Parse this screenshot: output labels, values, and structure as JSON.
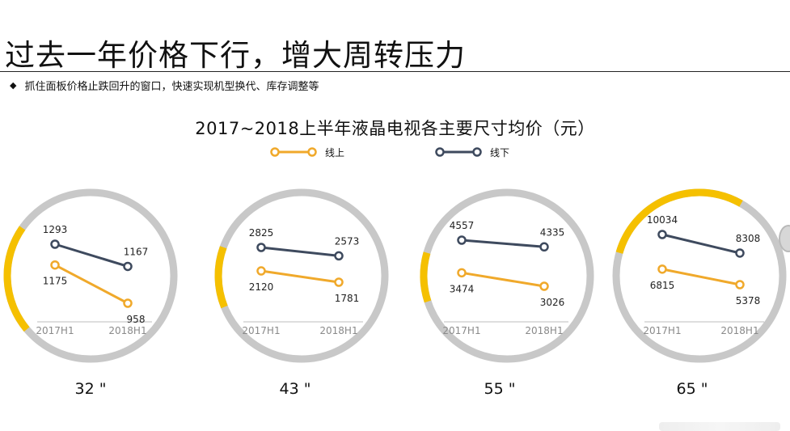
{
  "title": "过去一年价格下行，增大周转压力",
  "bullet": {
    "icon": "diamond-bullet-icon",
    "text": "抓住面板价格止跌回升的窗口，快速实现机型换代、库存调整等"
  },
  "colors": {
    "online": "#f0a92b",
    "offline": "#3e4a5e",
    "ring": "#c8c8c8",
    "ring_accent": "#f5c000",
    "axis": "#bdbdbd",
    "tick_text": "#8a8a8a"
  },
  "chart_data": {
    "type": "line",
    "title": "2017~2018上半年液晶电视各主要尺寸均价（元）",
    "legend": [
      {
        "name": "线上",
        "color": "#f0a92b"
      },
      {
        "name": "线下",
        "color": "#3e4a5e"
      }
    ],
    "legend_position": "top",
    "x_categories": [
      "2017H1",
      "2018H1"
    ],
    "panels": [
      {
        "size": "32 \"",
        "series": [
          {
            "name": "线下",
            "values": [
              1293,
              1167
            ]
          },
          {
            "name": "线上",
            "values": [
              1175,
              958
            ]
          }
        ]
      },
      {
        "size": "43 \"",
        "series": [
          {
            "name": "线下",
            "values": [
              2825,
              2573
            ]
          },
          {
            "name": "线上",
            "values": [
              2120,
              1781
            ]
          }
        ]
      },
      {
        "size": "55 \"",
        "series": [
          {
            "name": "线下",
            "values": [
              4557,
              4335
            ]
          },
          {
            "name": "线上",
            "values": [
              3474,
              3026
            ]
          }
        ]
      },
      {
        "size": "65 \"",
        "series": [
          {
            "name": "线下",
            "values": [
              10034,
              8308
            ]
          },
          {
            "name": "线上",
            "values": [
              6815,
              5378
            ]
          }
        ]
      }
    ]
  }
}
